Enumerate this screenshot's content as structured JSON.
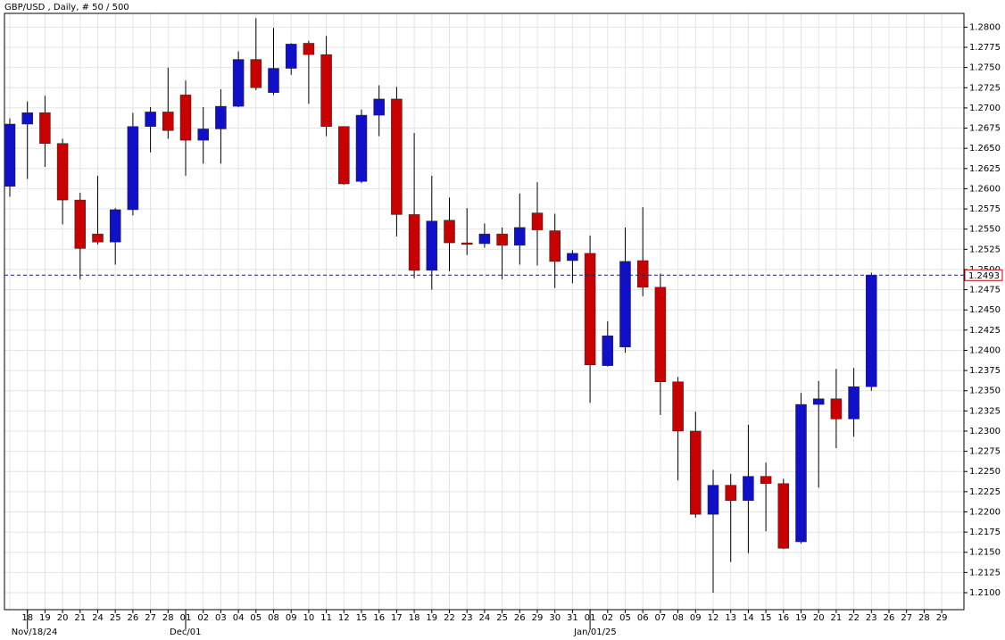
{
  "chart_data": {
    "type": "candlestick",
    "title": "GBP/USD , Daily, # 50 / 500",
    "categories": [
      null,
      "18",
      "19",
      "20",
      "21",
      "24",
      "25",
      "26",
      "27",
      "28",
      "01",
      "02",
      "03",
      "04",
      "05",
      "08",
      "09",
      "10",
      "11",
      "12",
      "15",
      "16",
      "17",
      "18",
      "19",
      "22",
      "23",
      "24",
      "25",
      "26",
      "29",
      "30",
      "31",
      "01",
      "02",
      "05",
      "06",
      "07",
      "08",
      "09",
      "12",
      "13",
      "14",
      "15",
      "16",
      "19",
      "20",
      "21",
      "22",
      "23",
      "26",
      "27",
      "28",
      "29"
    ],
    "date_labels": [
      {
        "index": 1,
        "label": "Nov/18/24"
      },
      {
        "index": 10,
        "label": "Dec/01"
      },
      {
        "index": 33,
        "label": "Jan/01/25"
      }
    ],
    "open": [
      1.2603,
      1.268,
      1.2694,
      1.2656,
      1.2586,
      1.2544,
      1.2534,
      1.2574,
      1.2677,
      1.2695,
      1.2716,
      1.266,
      1.2674,
      1.2702,
      1.276,
      1.2719,
      1.2749,
      1.278,
      1.2766,
      1.2677,
      1.2609,
      1.2691,
      1.2711,
      1.2568,
      1.2499,
      1.2561,
      1.2533,
      1.2532,
      1.2544,
      1.253,
      1.257,
      1.2548,
      1.2511,
      1.252,
      1.2381,
      1.2404,
      1.2511,
      1.2478,
      1.2361,
      1.23,
      1.2197,
      1.2233,
      1.2214,
      1.2244,
      1.2235,
      1.2163,
      1.2333,
      1.234,
      1.2315,
      1.2355,
      null,
      null,
      null,
      null
    ],
    "high": [
      1.2687,
      1.2708,
      1.2715,
      1.2662,
      1.2595,
      1.2616,
      1.2576,
      1.2694,
      1.2701,
      1.275,
      1.2734,
      1.2701,
      1.2723,
      1.277,
      1.2811,
      1.2799,
      1.278,
      1.2783,
      1.2789,
      1.2677,
      1.2698,
      1.2728,
      1.2726,
      1.2669,
      1.2616,
      1.2589,
      1.2576,
      1.2557,
      1.2552,
      1.2594,
      1.2608,
      1.2569,
      1.2524,
      1.2542,
      1.2436,
      1.2552,
      1.2577,
      1.2495,
      1.2367,
      1.2324,
      1.2252,
      1.2247,
      1.2308,
      1.2261,
      1.2241,
      1.2347,
      1.2362,
      1.2377,
      1.2378,
      1.2496,
      null,
      null,
      null,
      null
    ],
    "low": [
      1.259,
      1.2612,
      1.2627,
      1.2556,
      1.2488,
      1.2531,
      1.2506,
      1.2567,
      1.2645,
      1.2662,
      1.2616,
      1.2631,
      1.2631,
      1.2701,
      1.2722,
      1.2716,
      1.2741,
      1.2705,
      1.2665,
      1.2605,
      1.2607,
      1.2665,
      1.2541,
      1.2489,
      1.2475,
      1.2498,
      1.2518,
      1.2527,
      1.2488,
      1.2506,
      1.2505,
      1.2477,
      1.2483,
      1.2335,
      1.238,
      1.2397,
      1.2467,
      1.232,
      1.2239,
      1.2193,
      1.21,
      1.2138,
      1.2149,
      1.2176,
      1.2154,
      1.2161,
      1.223,
      1.2279,
      1.2293,
      1.235,
      null,
      null,
      null,
      null
    ],
    "close": [
      1.268,
      1.2694,
      1.2656,
      1.2586,
      1.2526,
      1.2534,
      1.2574,
      1.2677,
      1.2695,
      1.2672,
      1.266,
      1.2674,
      1.2702,
      1.276,
      1.2725,
      1.2749,
      1.2779,
      1.2766,
      1.2677,
      1.2606,
      1.2691,
      1.2711,
      1.2568,
      1.2499,
      1.256,
      1.2533,
      1.2531,
      1.2544,
      1.253,
      1.2552,
      1.2549,
      1.251,
      1.252,
      1.2382,
      1.2418,
      1.251,
      1.2478,
      1.2361,
      1.23,
      1.2197,
      1.2233,
      1.2214,
      1.2244,
      1.2235,
      1.2155,
      1.2333,
      1.234,
      1.2315,
      1.2355,
      1.2493,
      null,
      null,
      null,
      null
    ],
    "up_color": "#1010c8",
    "down_color": "#c80000",
    "last_price": {
      "value": 1.2493,
      "label": "1.2493"
    },
    "ylim": [
      1.2079,
      1.2817
    ],
    "yticks": [
      {
        "value": 1.21,
        "label": "1.2100"
      },
      {
        "value": 1.2125,
        "label": "1.2125"
      },
      {
        "value": 1.215,
        "label": "1.2150"
      },
      {
        "value": 1.2175,
        "label": "1.2175"
      },
      {
        "value": 1.22,
        "label": "1.2200"
      },
      {
        "value": 1.2225,
        "label": "1.2225"
      },
      {
        "value": 1.225,
        "label": "1.2250"
      },
      {
        "value": 1.2275,
        "label": "1.2275"
      },
      {
        "value": 1.23,
        "label": "1.2300"
      },
      {
        "value": 1.2325,
        "label": "1.2325"
      },
      {
        "value": 1.235,
        "label": "1.2350"
      },
      {
        "value": 1.2375,
        "label": "1.2375"
      },
      {
        "value": 1.24,
        "label": "1.2400"
      },
      {
        "value": 1.2425,
        "label": "1.2425"
      },
      {
        "value": 1.245,
        "label": "1.2450"
      },
      {
        "value": 1.2475,
        "label": "1.2475"
      },
      {
        "value": 1.25,
        "label": "1.2500"
      },
      {
        "value": 1.2525,
        "label": "1.2525"
      },
      {
        "value": 1.255,
        "label": "1.2550"
      },
      {
        "value": 1.2575,
        "label": "1.2575"
      },
      {
        "value": 1.26,
        "label": "1.2600"
      },
      {
        "value": 1.2625,
        "label": "1.2625"
      },
      {
        "value": 1.265,
        "label": "1.2650"
      },
      {
        "value": 1.2675,
        "label": "1.2675"
      },
      {
        "value": 1.27,
        "label": "1.2700"
      },
      {
        "value": 1.2725,
        "label": "1.2725"
      },
      {
        "value": 1.275,
        "label": "1.2750"
      },
      {
        "value": 1.2775,
        "label": "1.2775"
      },
      {
        "value": 1.28,
        "label": "1.2800"
      }
    ],
    "grid": true
  }
}
